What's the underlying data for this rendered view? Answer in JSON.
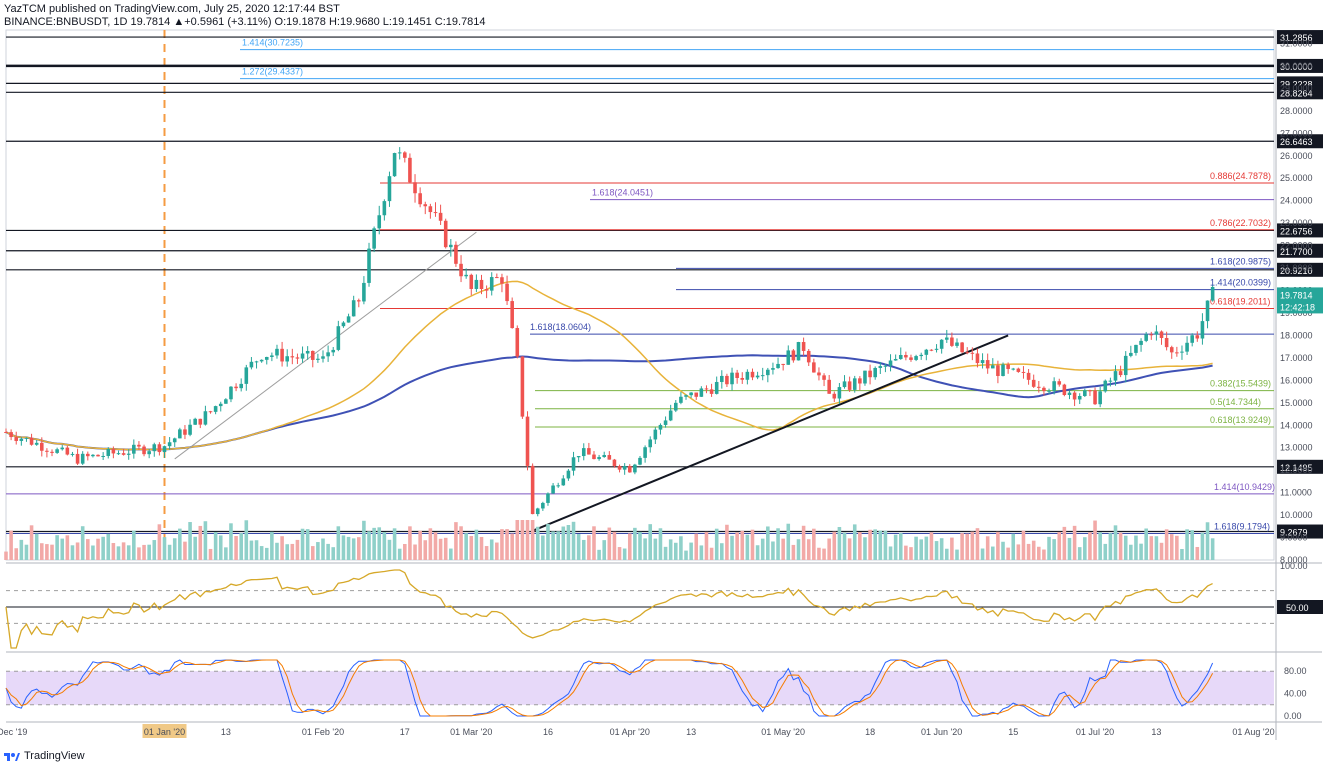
{
  "header": {
    "line1": "YazTCM published on TradingView.com, July 25, 2020 12:17:44 BST",
    "line2": "BINANCE:BNBUSDT, 1D 19.7814 ▲+0.5961 (+3.11%) O:19.1878 H:19.9680 L:19.1451 C:19.7814"
  },
  "brand": {
    "label": "TradingView",
    "icon": "tradingview-logo-icon"
  },
  "colors": {
    "up": "#26a69a",
    "down": "#ef5350",
    "ma_blue": "#3f51b5",
    "ma_yellow": "#e8b33a",
    "rsi": "#d6a829",
    "stoch_k": "#2962ff",
    "stoch_d": "#f57c00",
    "stoch_band": "#e1d0f7"
  },
  "price_axis": {
    "ticks": [
      "31.0000",
      "30.0000",
      "29.0000",
      "28.0000",
      "27.0000",
      "26.0000",
      "25.0000",
      "24.0000",
      "23.0000",
      "22.0000",
      "21.0000",
      "20.0000",
      "19.0000",
      "18.0000",
      "17.0000",
      "16.0000",
      "15.0000",
      "14.0000",
      "13.0000",
      "12.0000",
      "11.0000",
      "10.0000",
      "9.0000",
      "8.0000"
    ],
    "current_price": "19.7814",
    "countdown": "12:42:18"
  },
  "time_axis": {
    "labels": [
      "01 Dec '19",
      "01 Jan '20",
      "13",
      "01 Feb '20",
      "17",
      "01 Mar '20",
      "16",
      "01 Apr '20",
      "13",
      "01 May '20",
      "18",
      "01 Jun '20",
      "15",
      "01 Jul '20",
      "13",
      "01 Aug '20"
    ],
    "highlighted": "01 Jan '20"
  },
  "chart_data": {
    "type": "candlestick",
    "symbol": "BINANCE:BNBUSDT",
    "interval": "1D",
    "ylim": [
      8,
      31.6
    ],
    "grid": false,
    "price_series_sketch": [
      {
        "date": "2019-12-01",
        "close": 13.7
      },
      {
        "date": "2019-12-15",
        "close": 12.5
      },
      {
        "date": "2020-01-01",
        "close": 13.1
      },
      {
        "date": "2020-01-10",
        "close": 14.6
      },
      {
        "date": "2020-01-20",
        "close": 17.2
      },
      {
        "date": "2020-02-01",
        "close": 16.9
      },
      {
        "date": "2020-02-08",
        "close": 19.6
      },
      {
        "date": "2020-02-15",
        "close": 26.3
      },
      {
        "date": "2020-02-25",
        "close": 22.3
      },
      {
        "date": "2020-03-01",
        "close": 20.0
      },
      {
        "date": "2020-03-07",
        "close": 20.6
      },
      {
        "date": "2020-03-10",
        "close": 16.8
      },
      {
        "date": "2020-03-13",
        "close": 10.0
      },
      {
        "date": "2020-03-22",
        "close": 12.8
      },
      {
        "date": "2020-04-01",
        "close": 12.1
      },
      {
        "date": "2020-04-10",
        "close": 15.0
      },
      {
        "date": "2020-04-20",
        "close": 16.0
      },
      {
        "date": "2020-04-30",
        "close": 16.8
      },
      {
        "date": "2020-05-05",
        "close": 17.5
      },
      {
        "date": "2020-05-10",
        "close": 15.3
      },
      {
        "date": "2020-05-20",
        "close": 16.5
      },
      {
        "date": "2020-06-01",
        "close": 17.8
      },
      {
        "date": "2020-06-10",
        "close": 16.6
      },
      {
        "date": "2020-06-20",
        "close": 15.9
      },
      {
        "date": "2020-07-01",
        "close": 15.2
      },
      {
        "date": "2020-07-06",
        "close": 16.5
      },
      {
        "date": "2020-07-12",
        "close": 18.3
      },
      {
        "date": "2020-07-16",
        "close": 17.2
      },
      {
        "date": "2020-07-21",
        "close": 18.1
      },
      {
        "date": "2020-07-24",
        "close": 19.78
      }
    ],
    "horizontal_levels": [
      {
        "value": 31.2856,
        "label": "31.2856",
        "style": "black"
      },
      {
        "value": 30.0,
        "label": "30.0000",
        "style": "black"
      },
      {
        "value": 29.2228,
        "label": "29.2228",
        "style": "black"
      },
      {
        "value": 28.8264,
        "label": "28.8264",
        "style": "black"
      },
      {
        "value": 26.6463,
        "label": "26.6463",
        "style": "black"
      },
      {
        "value": 22.6756,
        "label": "22.6756",
        "style": "black"
      },
      {
        "value": 21.77,
        "label": "21.7700",
        "style": "black"
      },
      {
        "value": 20.921,
        "label": "20.9210",
        "style": "black"
      },
      {
        "value": 12.1495,
        "label": "12.1495",
        "style": "black"
      },
      {
        "value": 9.2679,
        "label": "9.2679",
        "style": "black"
      }
    ],
    "fib_levels": [
      {
        "value": 30.7235,
        "label": "1.414(30.7235)",
        "color": "#42a5f5"
      },
      {
        "value": 29.4337,
        "label": "1.272(29.4337)",
        "color": "#42a5f5"
      },
      {
        "value": 24.7878,
        "label": "0.886(24.7878)",
        "color": "#e53935"
      },
      {
        "value": 24.0451,
        "label": "1.618(24.0451)",
        "color": "#7e57c2"
      },
      {
        "value": 22.7032,
        "label": "0.786(22.7032)",
        "color": "#e53935"
      },
      {
        "value": 20.9875,
        "label": "1.618(20.9875)",
        "color": "#3949ab"
      },
      {
        "value": 20.0399,
        "label": "1.414(20.0399)",
        "color": "#3949ab"
      },
      {
        "value": 19.2011,
        "label": "0.618(19.2011)",
        "color": "#e53935"
      },
      {
        "value": 18.0604,
        "label": "1.618(18.0604)",
        "color": "#3949ab"
      },
      {
        "value": 15.5439,
        "label": "0.382(15.5439)",
        "color": "#7cb342"
      },
      {
        "value": 14.7344,
        "label": "0.5(14.7344)",
        "color": "#7cb342"
      },
      {
        "value": 13.9249,
        "label": "0.618(13.9249)",
        "color": "#7cb342"
      },
      {
        "value": 10.9429,
        "label": "1.414(10.9429)",
        "color": "#7e57c2"
      },
      {
        "value": 9.1794,
        "label": "1.618(9.1794)",
        "color": "#3949ab"
      }
    ],
    "rsi": {
      "levels_label": "50.00",
      "axis": [
        "100.00",
        "50.00"
      ]
    },
    "stoch_rsi": {
      "axis": [
        "80.00",
        "40.00",
        "0.00"
      ]
    }
  }
}
